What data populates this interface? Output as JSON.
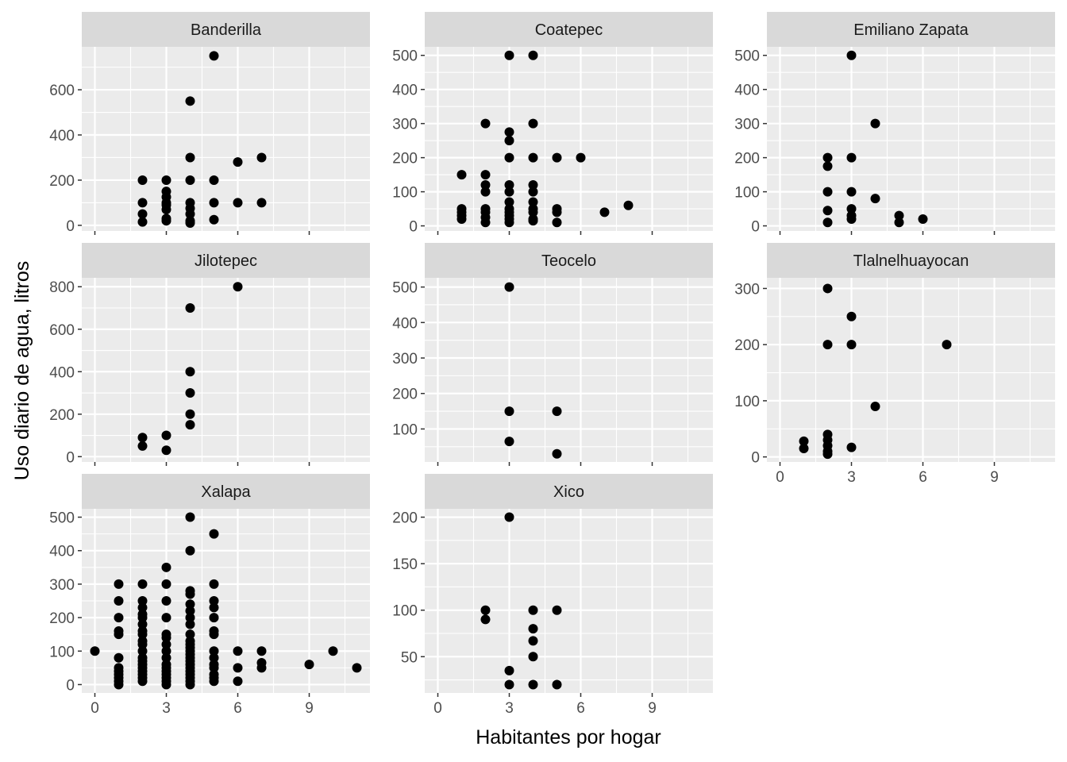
{
  "chart_data": {
    "type": "scatter",
    "layout": "facet_wrap",
    "xlabel": "Habitantes por hogar",
    "ylabel": "Uso diario de agua, litros",
    "xlim": [
      -0.55,
      11.55
    ],
    "x_ticks": [
      0,
      3,
      6,
      9
    ],
    "colors": {
      "panel_bg": "#EBEBEB",
      "strip_bg": "#D9D9D9",
      "grid_major": "#FFFFFF",
      "point": "#000000",
      "tick_label": "#4D4D4D",
      "axis_title": "#000000"
    },
    "panels": [
      {
        "name": "Banderilla",
        "ylim": [
          -25,
          790
        ],
        "y_ticks": [
          0,
          200,
          400,
          600
        ],
        "points": [
          [
            2,
            15
          ],
          [
            2,
            50
          ],
          [
            2,
            100
          ],
          [
            2,
            200
          ],
          [
            3,
            20
          ],
          [
            3,
            30
          ],
          [
            3,
            70
          ],
          [
            3,
            90
          ],
          [
            3,
            100
          ],
          [
            3,
            125
          ],
          [
            3,
            150
          ],
          [
            3,
            200
          ],
          [
            4,
            10
          ],
          [
            4,
            20
          ],
          [
            4,
            50
          ],
          [
            4,
            75
          ],
          [
            4,
            100
          ],
          [
            4,
            200
          ],
          [
            4,
            300
          ],
          [
            4,
            550
          ],
          [
            5,
            25
          ],
          [
            5,
            100
          ],
          [
            5,
            200
          ],
          [
            5,
            750
          ],
          [
            6,
            100
          ],
          [
            6,
            280
          ],
          [
            7,
            100
          ],
          [
            7,
            300
          ]
        ]
      },
      {
        "name": "Coatepec",
        "ylim": [
          -15,
          525
        ],
        "y_ticks": [
          0,
          100,
          200,
          300,
          400,
          500
        ],
        "points": [
          [
            1,
            20
          ],
          [
            1,
            30
          ],
          [
            1,
            40
          ],
          [
            1,
            50
          ],
          [
            1,
            150
          ],
          [
            2,
            10
          ],
          [
            2,
            25
          ],
          [
            2,
            40
          ],
          [
            2,
            50
          ],
          [
            2,
            100
          ],
          [
            2,
            120
          ],
          [
            2,
            150
          ],
          [
            2,
            300
          ],
          [
            3,
            10
          ],
          [
            3,
            20
          ],
          [
            3,
            30
          ],
          [
            3,
            40
          ],
          [
            3,
            50
          ],
          [
            3,
            70
          ],
          [
            3,
            100
          ],
          [
            3,
            120
          ],
          [
            3,
            200
          ],
          [
            3,
            250
          ],
          [
            3,
            275
          ],
          [
            3,
            500
          ],
          [
            4,
            15
          ],
          [
            4,
            20
          ],
          [
            4,
            40
          ],
          [
            4,
            50
          ],
          [
            4,
            70
          ],
          [
            4,
            100
          ],
          [
            4,
            120
          ],
          [
            4,
            200
          ],
          [
            4,
            300
          ],
          [
            4,
            500
          ],
          [
            5,
            10
          ],
          [
            5,
            40
          ],
          [
            5,
            50
          ],
          [
            5,
            200
          ],
          [
            6,
            200
          ],
          [
            7,
            40
          ],
          [
            8,
            60
          ]
        ]
      },
      {
        "name": "Emiliano Zapata",
        "ylim": [
          -15,
          525
        ],
        "y_ticks": [
          0,
          100,
          200,
          300,
          400,
          500
        ],
        "points": [
          [
            2,
            10
          ],
          [
            2,
            45
          ],
          [
            2,
            100
          ],
          [
            2,
            175
          ],
          [
            2,
            200
          ],
          [
            3,
            20
          ],
          [
            3,
            30
          ],
          [
            3,
            50
          ],
          [
            3,
            100
          ],
          [
            3,
            200
          ],
          [
            3,
            500
          ],
          [
            4,
            80
          ],
          [
            4,
            300
          ],
          [
            5,
            10
          ],
          [
            5,
            30
          ],
          [
            6,
            20
          ]
        ]
      },
      {
        "name": "Jilotepec",
        "ylim": [
          -25,
          842
        ],
        "y_ticks": [
          0,
          200,
          400,
          600,
          800
        ],
        "points": [
          [
            2,
            50
          ],
          [
            2,
            90
          ],
          [
            3,
            30
          ],
          [
            3,
            100
          ],
          [
            4,
            150
          ],
          [
            4,
            200
          ],
          [
            4,
            300
          ],
          [
            4,
            400
          ],
          [
            4,
            700
          ],
          [
            6,
            800
          ]
        ]
      },
      {
        "name": "Teocelo",
        "ylim": [
          7,
          526
        ],
        "y_ticks": [
          100,
          200,
          300,
          400,
          500
        ],
        "points": [
          [
            3,
            65
          ],
          [
            3,
            150
          ],
          [
            3,
            500
          ],
          [
            5,
            30
          ],
          [
            5,
            150
          ]
        ]
      },
      {
        "name": "Tlalnelhuayocan",
        "ylim": [
          -9,
          319
        ],
        "y_ticks": [
          0,
          100,
          200,
          300
        ],
        "points": [
          [
            1,
            15
          ],
          [
            1,
            28
          ],
          [
            2,
            5
          ],
          [
            2,
            10
          ],
          [
            2,
            20
          ],
          [
            2,
            30
          ],
          [
            2,
            40
          ],
          [
            2,
            200
          ],
          [
            2,
            300
          ],
          [
            3,
            17
          ],
          [
            3,
            200
          ],
          [
            3,
            250
          ],
          [
            4,
            90
          ],
          [
            7,
            200
          ]
        ]
      },
      {
        "name": "Xalapa",
        "ylim": [
          -25,
          525
        ],
        "y_ticks": [
          0,
          100,
          200,
          300,
          400,
          500
        ],
        "points": [
          [
            0,
            100
          ],
          [
            1,
            0
          ],
          [
            1,
            10
          ],
          [
            1,
            20
          ],
          [
            1,
            30
          ],
          [
            1,
            40
          ],
          [
            1,
            50
          ],
          [
            1,
            80
          ],
          [
            1,
            150
          ],
          [
            1,
            160
          ],
          [
            1,
            200
          ],
          [
            1,
            250
          ],
          [
            1,
            300
          ],
          [
            2,
            10
          ],
          [
            2,
            20
          ],
          [
            2,
            30
          ],
          [
            2,
            40
          ],
          [
            2,
            50
          ],
          [
            2,
            60
          ],
          [
            2,
            70
          ],
          [
            2,
            80
          ],
          [
            2,
            100
          ],
          [
            2,
            120
          ],
          [
            2,
            130
          ],
          [
            2,
            150
          ],
          [
            2,
            160
          ],
          [
            2,
            180
          ],
          [
            2,
            200
          ],
          [
            2,
            210
          ],
          [
            2,
            230
          ],
          [
            2,
            250
          ],
          [
            2,
            300
          ],
          [
            3,
            0
          ],
          [
            3,
            10
          ],
          [
            3,
            20
          ],
          [
            3,
            30
          ],
          [
            3,
            40
          ],
          [
            3,
            50
          ],
          [
            3,
            60
          ],
          [
            3,
            80
          ],
          [
            3,
            100
          ],
          [
            3,
            120
          ],
          [
            3,
            140
          ],
          [
            3,
            150
          ],
          [
            3,
            200
          ],
          [
            3,
            250
          ],
          [
            3,
            300
          ],
          [
            3,
            350
          ],
          [
            4,
            0
          ],
          [
            4,
            10
          ],
          [
            4,
            20
          ],
          [
            4,
            30
          ],
          [
            4,
            40
          ],
          [
            4,
            50
          ],
          [
            4,
            60
          ],
          [
            4,
            70
          ],
          [
            4,
            80
          ],
          [
            4,
            90
          ],
          [
            4,
            100
          ],
          [
            4,
            110
          ],
          [
            4,
            120
          ],
          [
            4,
            130
          ],
          [
            4,
            150
          ],
          [
            4,
            180
          ],
          [
            4,
            200
          ],
          [
            4,
            220
          ],
          [
            4,
            240
          ],
          [
            4,
            270
          ],
          [
            4,
            280
          ],
          [
            4,
            400
          ],
          [
            4,
            500
          ],
          [
            5,
            10
          ],
          [
            5,
            20
          ],
          [
            5,
            30
          ],
          [
            5,
            50
          ],
          [
            5,
            60
          ],
          [
            5,
            80
          ],
          [
            5,
            100
          ],
          [
            5,
            150
          ],
          [
            5,
            160
          ],
          [
            5,
            200
          ],
          [
            5,
            230
          ],
          [
            5,
            250
          ],
          [
            5,
            300
          ],
          [
            5,
            450
          ],
          [
            6,
            10
          ],
          [
            6,
            50
          ],
          [
            6,
            100
          ],
          [
            7,
            50
          ],
          [
            7,
            65
          ],
          [
            7,
            100
          ],
          [
            9,
            60
          ],
          [
            10,
            100
          ],
          [
            11,
            50
          ]
        ]
      },
      {
        "name": "Xico",
        "ylim": [
          11,
          209
        ],
        "y_ticks": [
          50,
          100,
          150,
          200
        ],
        "points": [
          [
            2,
            90
          ],
          [
            2,
            100
          ],
          [
            3,
            20
          ],
          [
            3,
            35
          ],
          [
            3,
            200
          ],
          [
            4,
            20
          ],
          [
            4,
            50
          ],
          [
            4,
            67
          ],
          [
            4,
            80
          ],
          [
            4,
            100
          ],
          [
            5,
            20
          ],
          [
            5,
            100
          ]
        ]
      }
    ]
  }
}
